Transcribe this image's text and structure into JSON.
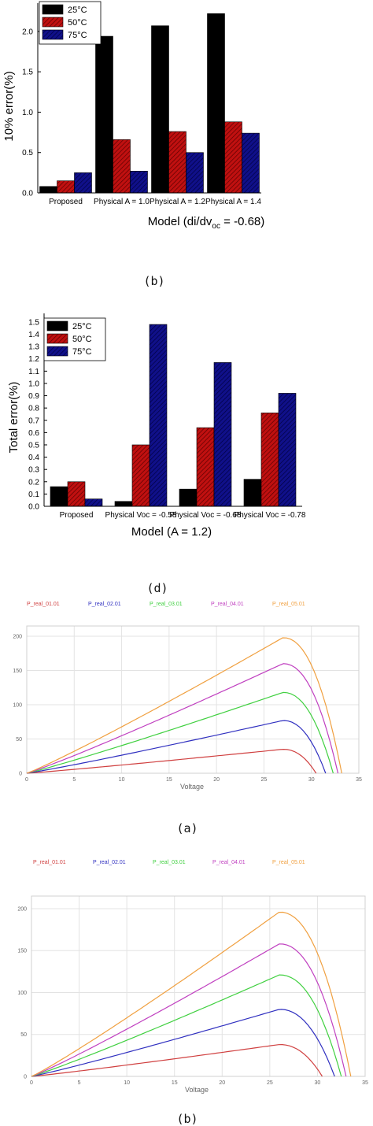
{
  "chart_data": [
    {
      "type": "bar",
      "categories": [
        "Proposed",
        "Physical A = 1.0",
        "Physical A = 1.2",
        "Physical A = 1.4"
      ],
      "series": [
        {
          "name": "25°C",
          "color": "#000000",
          "pattern": "solid",
          "values": [
            0.08,
            1.94,
            2.07,
            2.22
          ]
        },
        {
          "name": "50°C",
          "color": "#c01010",
          "pattern": "hatch",
          "values": [
            0.15,
            0.66,
            0.76,
            0.88
          ]
        },
        {
          "name": "75°C",
          "color": "#10108a",
          "pattern": "hatch",
          "values": [
            0.25,
            0.27,
            0.5,
            0.74
          ]
        }
      ],
      "ylabel": "10% error(%)",
      "xlabel": "Model (di/dv",
      "xlabel_sub": "oc",
      "xlabel_tail": " = -0.68)",
      "ylim": [
        0,
        2.35
      ],
      "yticks": [
        "0.0",
        "0.5",
        "1.0",
        "1.5",
        "2.0"
      ],
      "legend": "top-left",
      "caption": "(b)"
    },
    {
      "type": "bar",
      "categories": [
        "Proposed",
        "Physical Voc = -0.58",
        "Physical Voc = -0.68",
        "Physical Voc = -0.78"
      ],
      "series": [
        {
          "name": "25°C",
          "color": "#000000",
          "pattern": "solid",
          "values": [
            0.16,
            0.04,
            0.14,
            0.22
          ]
        },
        {
          "name": "50°C",
          "color": "#c01010",
          "pattern": "hatch",
          "values": [
            0.2,
            0.5,
            0.64,
            0.76
          ]
        },
        {
          "name": "75°C",
          "color": "#10108a",
          "pattern": "hatch",
          "values": [
            0.06,
            1.48,
            1.17,
            0.92
          ]
        }
      ],
      "ylabel": "Total error(%)",
      "xlabel": "Model (A = 1.2)",
      "ylim": [
        0,
        1.57
      ],
      "yticks": [
        "0.0",
        "0.1",
        "0.2",
        "0.3",
        "0.4",
        "0.5",
        "0.6",
        "0.7",
        "0.8",
        "0.9",
        "1.0",
        "1.1",
        "1.2",
        "1.3",
        "1.4",
        "1.5"
      ],
      "legend": "top-left",
      "caption": "(d)"
    },
    {
      "type": "line",
      "series": [
        {
          "name": "P_real_01.01",
          "color": "#d04040",
          "peak": [
            27,
            35
          ],
          "voc": 30.5
        },
        {
          "name": "P_real_02.01",
          "color": "#3030c0",
          "peak": [
            27,
            77
          ],
          "voc": 31.5
        },
        {
          "name": "P_real_03.01",
          "color": "#40d040",
          "peak": [
            27,
            118
          ],
          "voc": 32.3
        },
        {
          "name": "P_real_04.01",
          "color": "#c040c0",
          "peak": [
            27,
            160
          ],
          "voc": 32.8
        },
        {
          "name": "P_real_05.01",
          "color": "#f0a040",
          "peak": [
            27,
            198
          ],
          "voc": 33.2
        }
      ],
      "xlabel": "Voltage",
      "xticks": [
        "0",
        "5",
        "10",
        "15",
        "20",
        "25",
        "30",
        "35"
      ],
      "yticks": [
        "0",
        "50",
        "100",
        "150",
        "200"
      ],
      "xlim": [
        0,
        35
      ],
      "ylim": [
        0,
        215
      ],
      "grid": true,
      "legend": "top",
      "caption": "(a)"
    },
    {
      "type": "line",
      "series": [
        {
          "name": "P_real_01.01",
          "color": "#d04040",
          "peak": [
            26,
            38
          ],
          "voc": 30.5
        },
        {
          "name": "P_real_02.01",
          "color": "#3030c0",
          "peak": [
            26,
            80
          ],
          "voc": 31.8
        },
        {
          "name": "P_real_03.01",
          "color": "#40d040",
          "peak": [
            26,
            121
          ],
          "voc": 32.5
        },
        {
          "name": "P_real_04.01",
          "color": "#c040c0",
          "peak": [
            26,
            158
          ],
          "voc": 33.0
        },
        {
          "name": "P_real_05.01",
          "color": "#f0a040",
          "peak": [
            26,
            196
          ],
          "voc": 33.5
        }
      ],
      "xlabel": "Voltage",
      "xticks": [
        "0",
        "5",
        "10",
        "15",
        "20",
        "25",
        "30",
        "35"
      ],
      "yticks": [
        "0",
        "50",
        "100",
        "150",
        "200"
      ],
      "xlim": [
        0,
        35
      ],
      "ylim": [
        0,
        215
      ],
      "grid": true,
      "legend": "top",
      "caption": "(b)"
    }
  ]
}
